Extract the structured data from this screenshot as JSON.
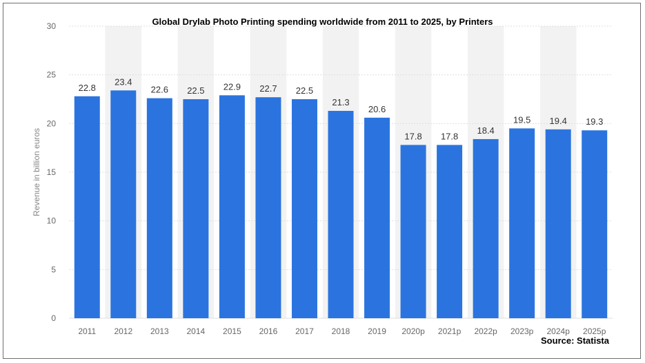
{
  "chart_data": {
    "type": "bar",
    "title": "Global Drylab Photo Printing spending worldwide from 2011 to 2025, by Printers",
    "xlabel": "",
    "ylabel": "Revenue in billion euros",
    "categories": [
      "2011",
      "2012",
      "2013",
      "2014",
      "2015",
      "2016",
      "2017",
      "2018",
      "2019",
      "2020p",
      "2021p",
      "2022p",
      "2023p",
      "2024p",
      "2025p"
    ],
    "values": [
      22.8,
      23.4,
      22.6,
      22.5,
      22.9,
      22.7,
      22.5,
      21.3,
      20.6,
      17.8,
      17.8,
      18.4,
      19.5,
      19.4,
      19.3
    ],
    "value_labels": [
      "22.8",
      "23.4",
      "22.6",
      "22.5",
      "22.9",
      "22.7",
      "22.5",
      "21.3",
      "20.6",
      "17.8",
      "17.8",
      "18.4",
      "19.5",
      "19.4",
      "19.3"
    ],
    "ylim": [
      0,
      30
    ],
    "yticks": [
      "0",
      "5",
      "10",
      "15",
      "20",
      "25",
      "30"
    ],
    "grid": true,
    "legend": "none",
    "colors": {
      "bar": "#2b74df",
      "alt_band": "#f2f2f2",
      "grid": "#dedede"
    },
    "source": "Source: Statista"
  }
}
